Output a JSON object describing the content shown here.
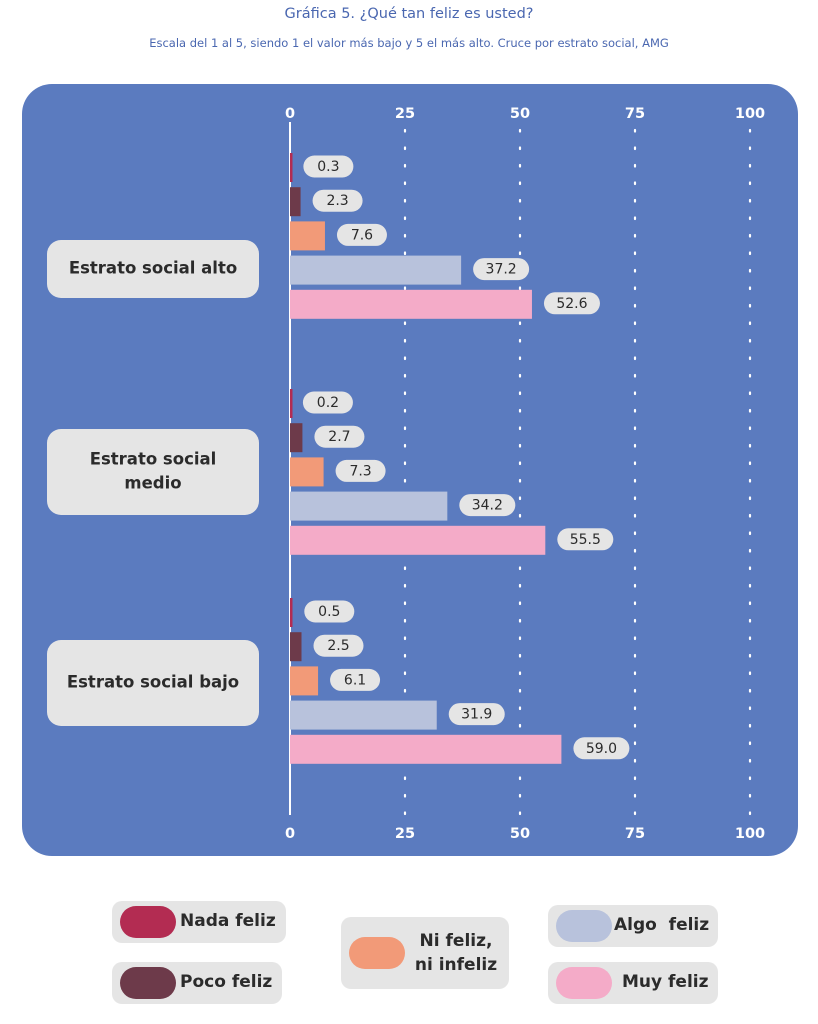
{
  "title": "Gráfica 5. ¿Qué tan feliz es usted?",
  "subtitle": "Escala del 1 al 5, siendo 1 el valor más bajo y 5 el más alto. Cruce por estrato social, AMG",
  "chart_data": {
    "type": "bar",
    "orientation": "horizontal",
    "xlim": [
      0,
      100
    ],
    "ticks": [
      "0",
      "25",
      "50",
      "75",
      "100"
    ],
    "tick_values": [
      0,
      25,
      50,
      75,
      100
    ],
    "grid": "dotted vertical",
    "groups": [
      {
        "label": "Estrato social alto",
        "values": [
          0.3,
          2.3,
          7.6,
          37.2,
          52.6
        ],
        "labels": [
          "0.3",
          "2.3",
          "7.6",
          "37.2",
          "52.6"
        ]
      },
      {
        "label": "Estrato social medio",
        "values": [
          0.2,
          2.7,
          7.3,
          34.2,
          55.5
        ],
        "labels": [
          "0.2",
          "2.7",
          "7.3",
          "34.2",
          "55.5"
        ]
      },
      {
        "label": "Estrato social bajo",
        "values": [
          0.5,
          2.5,
          6.1,
          31.9,
          59.0
        ],
        "labels": [
          "0.5",
          "2.5",
          "6.1",
          "31.9",
          "59.0"
        ]
      }
    ],
    "series": [
      {
        "name": "Nada feliz",
        "color": "#b32c52"
      },
      {
        "name": "Poco feliz",
        "color": "#6d3a4a"
      },
      {
        "name": "Ni feliz, ni infeliz",
        "color": "#f29a78"
      },
      {
        "name": "Algo  feliz",
        "color": "#b8c2dc"
      },
      {
        "name": "Muy feliz",
        "color": "#f4abc8"
      }
    ],
    "legend_position": "bottom"
  },
  "colors": {
    "panel": "#5b7bbf",
    "title": "#4a67b0",
    "label_box": "#e5e5e5"
  }
}
